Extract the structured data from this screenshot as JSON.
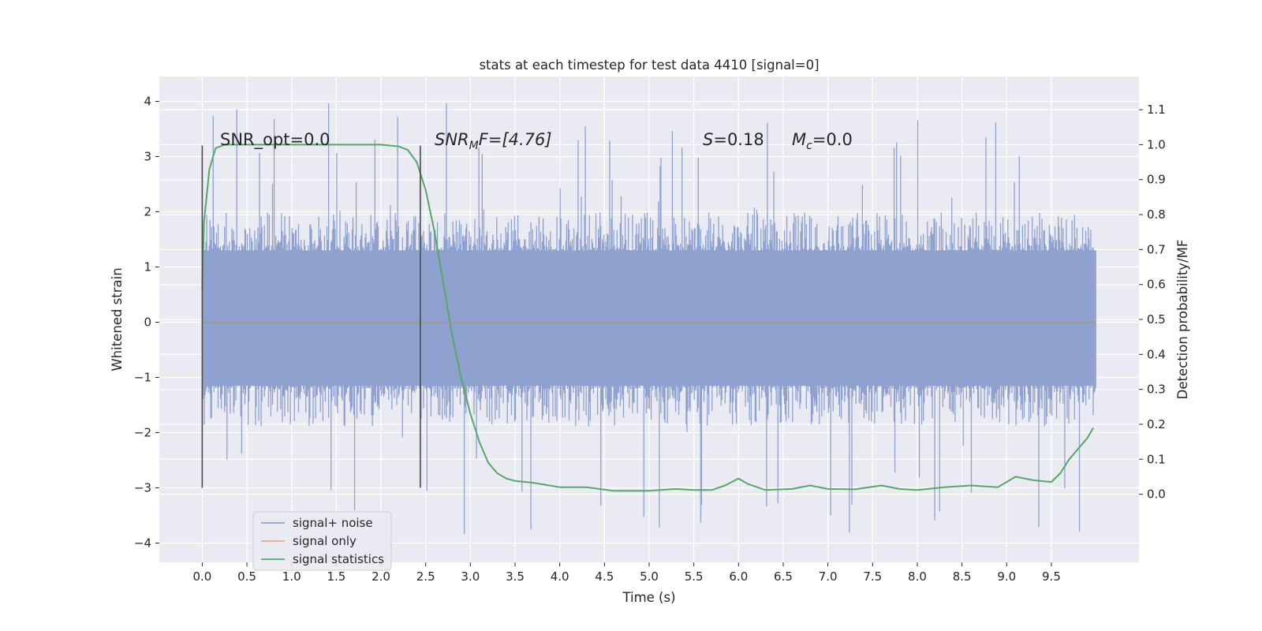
{
  "chart_data": {
    "type": "line",
    "title": "stats at each timestep for test data 4410 [signal=0]",
    "xlabel": "Time (s)",
    "ylabel": "Whitened strain",
    "y2label": "Detection probability/MF",
    "xlim": [
      -0.48,
      10.48
    ],
    "ylim": [
      -4.35,
      4.45
    ],
    "y2lim": [
      -0.195,
      1.195
    ],
    "x_ticks": [
      0.0,
      0.5,
      1.0,
      1.5,
      2.0,
      2.5,
      3.0,
      3.5,
      4.0,
      4.5,
      5.0,
      5.5,
      6.0,
      6.5,
      7.0,
      7.5,
      8.0,
      8.5,
      9.0,
      9.5
    ],
    "x_tick_labels": [
      "0.0",
      "0.5",
      "1.0",
      "1.5",
      "2.0",
      "2.5",
      "3.0",
      "3.5",
      "4.0",
      "4.5",
      "5.0",
      "5.5",
      "6.0",
      "6.5",
      "7.0",
      "7.5",
      "8.0",
      "8.5",
      "9.0",
      "9.5"
    ],
    "y_ticks": [
      -4,
      -3,
      -2,
      -1,
      0,
      1,
      2,
      3,
      4
    ],
    "y_tick_labels": [
      "−4",
      "−3",
      "−2",
      "−1",
      "0",
      "1",
      "2",
      "3",
      "4"
    ],
    "y2_ticks": [
      0.0,
      0.1,
      0.2,
      0.3,
      0.4,
      0.5,
      0.6,
      0.7,
      0.8,
      0.9,
      1.0,
      1.1
    ],
    "y2_tick_labels": [
      "0.0",
      "0.1",
      "0.2",
      "0.3",
      "0.4",
      "0.5",
      "0.6",
      "0.7",
      "0.8",
      "0.9",
      "1.0",
      "1.1"
    ],
    "grid": true,
    "legend_position": "lower-left",
    "annotations": {
      "snr_opt": "SNR_opt=0.0",
      "snr_mf_sym": "SNR",
      "snr_mf_sub": "M",
      "snr_mf_rest": "F=[4.76]",
      "s_sym": "S",
      "s_rest": "=0.18",
      "mc_sym": "M",
      "mc_sub": "c",
      "mc_rest": "=0.0"
    },
    "vlines": [
      {
        "x": 0.0,
        "ymin": -3.0,
        "ymax": 3.2
      },
      {
        "x": 2.44,
        "ymin": -3.0,
        "ymax": 3.2
      }
    ],
    "noise": {
      "x_range": [
        0.0,
        10.0
      ],
      "typical_min": -1.8,
      "typical_max": 1.9,
      "max_peak": 4.05,
      "min_peak": -3.9
    },
    "series": [
      {
        "name": "signal+ noise",
        "color": "#8fa2cf",
        "axis": "left",
        "x": [
          0.0,
          10.0
        ],
        "y": [
          0.0,
          0.0
        ]
      },
      {
        "name": "signal only",
        "color": "#dd8452",
        "axis": "left",
        "x": [
          0.0,
          10.0
        ],
        "y": [
          0.0,
          0.0
        ]
      },
      {
        "name": "signal statistics",
        "color": "#55a868",
        "axis": "right",
        "x": [
          0.0,
          0.02,
          0.08,
          0.15,
          0.25,
          0.5,
          1.0,
          1.5,
          2.0,
          2.2,
          2.3,
          2.4,
          2.5,
          2.6,
          2.7,
          2.8,
          2.9,
          3.0,
          3.1,
          3.2,
          3.3,
          3.4,
          3.5,
          3.7,
          4.0,
          4.3,
          4.6,
          5.0,
          5.3,
          5.5,
          5.7,
          5.85,
          6.0,
          6.1,
          6.3,
          6.6,
          6.8,
          7.0,
          7.3,
          7.6,
          7.8,
          8.0,
          8.3,
          8.6,
          8.9,
          9.1,
          9.3,
          9.5,
          9.6,
          9.7,
          9.8,
          9.9,
          9.97
        ],
        "y": [
          0.58,
          0.78,
          0.93,
          0.99,
          1.0,
          1.0,
          1.0,
          1.0,
          1.0,
          0.995,
          0.985,
          0.95,
          0.87,
          0.75,
          0.6,
          0.45,
          0.33,
          0.23,
          0.15,
          0.09,
          0.06,
          0.045,
          0.038,
          0.033,
          0.02,
          0.02,
          0.01,
          0.01,
          0.015,
          0.012,
          0.012,
          0.025,
          0.045,
          0.03,
          0.012,
          0.015,
          0.025,
          0.015,
          0.014,
          0.025,
          0.015,
          0.012,
          0.02,
          0.025,
          0.02,
          0.05,
          0.04,
          0.035,
          0.06,
          0.1,
          0.13,
          0.16,
          0.19
        ]
      }
    ]
  }
}
